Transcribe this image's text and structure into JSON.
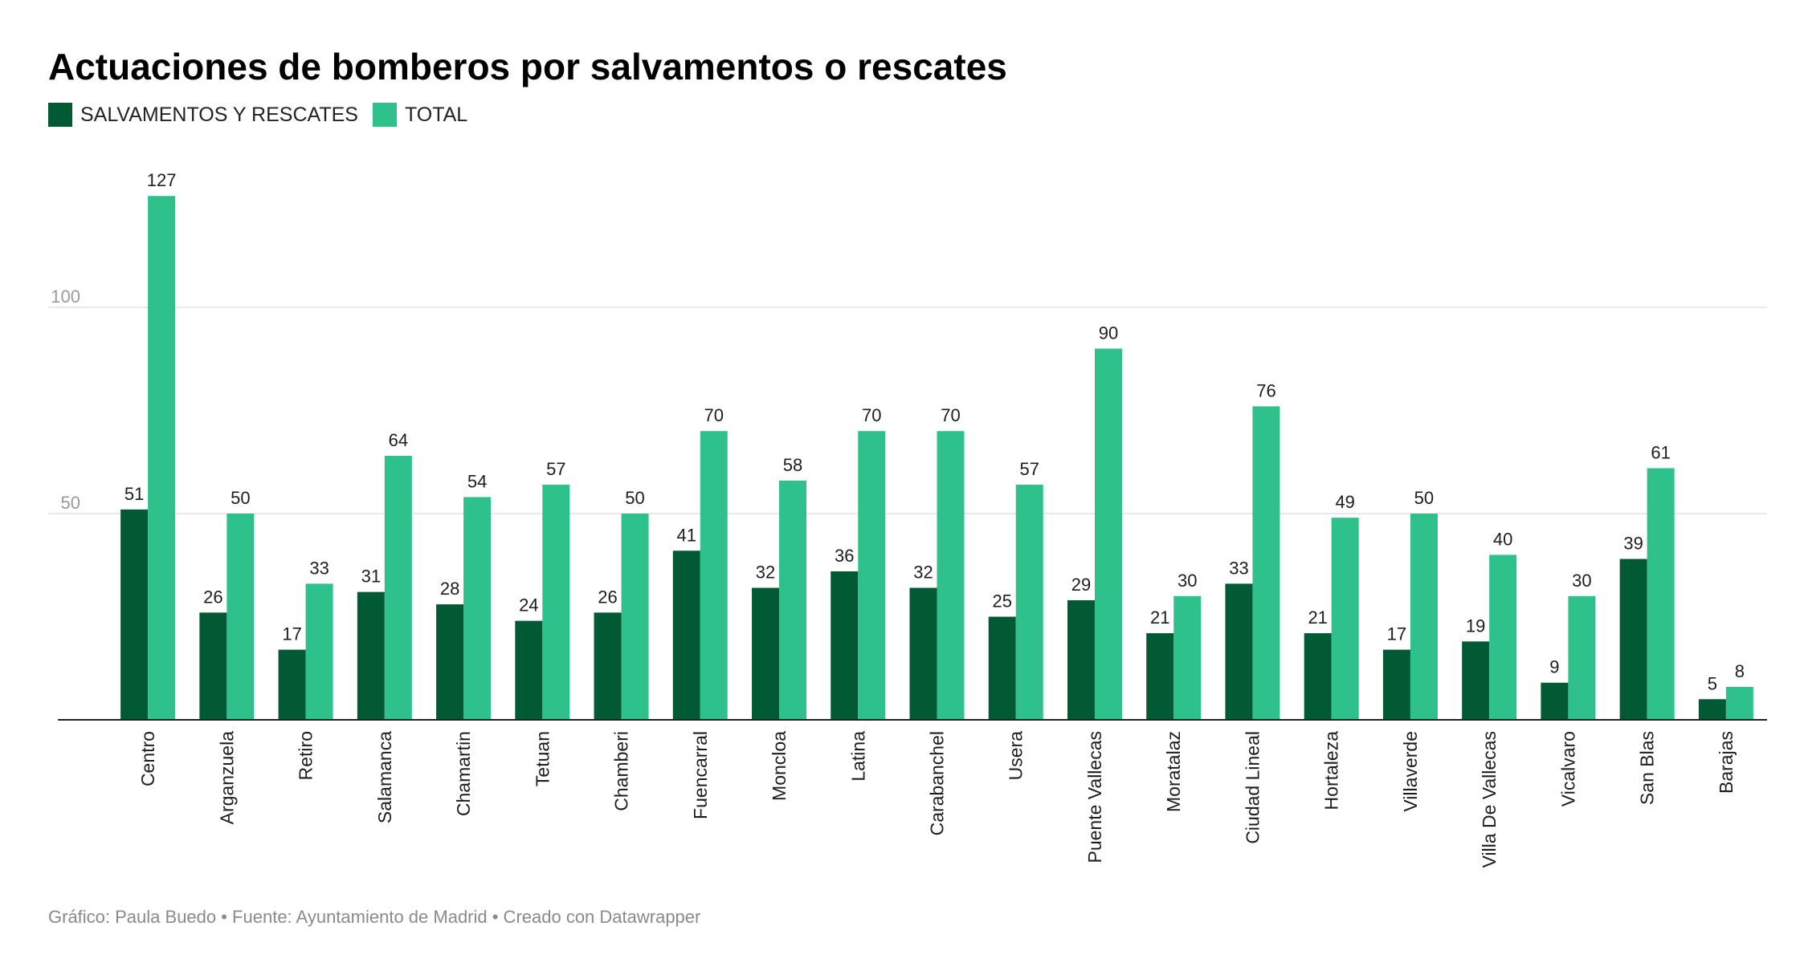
{
  "title": "Actuaciones de bomberos por salvamentos o rescates",
  "legend": [
    {
      "label": "SALVAMENTOS Y RESCATES",
      "color": "#015a33"
    },
    {
      "label": "TOTAL",
      "color": "#2ec18b"
    }
  ],
  "footer": "Gráfico: Paula Buedo • Fuente: Ayuntamiento de Madrid • Creado con Datawrapper",
  "chart_data": {
    "type": "bar",
    "title": "Actuaciones de bomberos por salvamentos o rescates",
    "xlabel": "",
    "ylabel": "",
    "ylim": [
      0,
      130
    ],
    "yticks": [
      50,
      100
    ],
    "grid": true,
    "legend_position": "top-left",
    "categories": [
      "Centro",
      "Arganzuela",
      "Retiro",
      "Salamanca",
      "Chamartin",
      "Tetuan",
      "Chamberi",
      "Fuencarral",
      "Moncloa",
      "Latina",
      "Carabanchel",
      "Usera",
      "Puente Vallecas",
      "Moratalaz",
      "Ciudad Lineal",
      "Hortaleza",
      "Villaverde",
      "Villa De Vallecas",
      "Vicalvaro",
      "San Blas",
      "Barajas"
    ],
    "series": [
      {
        "name": "SALVAMENTOS Y RESCATES",
        "color": "#015a33",
        "values": [
          51,
          26,
          17,
          31,
          28,
          24,
          26,
          41,
          32,
          36,
          32,
          25,
          29,
          21,
          33,
          21,
          17,
          19,
          9,
          39,
          5
        ]
      },
      {
        "name": "TOTAL",
        "color": "#2ec18b",
        "values": [
          127,
          50,
          33,
          64,
          54,
          57,
          50,
          70,
          58,
          70,
          70,
          57,
          90,
          30,
          76,
          49,
          50,
          40,
          30,
          61,
          8
        ]
      }
    ]
  }
}
